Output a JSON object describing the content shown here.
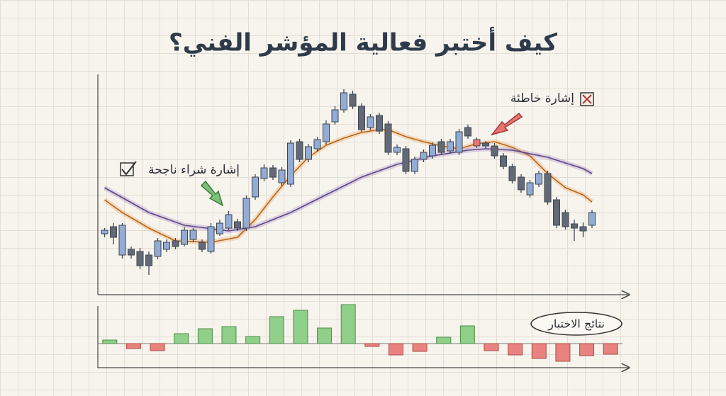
{
  "chart_data": [
    {
      "type": "candlestick",
      "title": "كيف أختبر فعالية المؤشر الفني؟",
      "open": [
        85,
        95,
        55,
        63,
        60,
        55,
        53,
        63,
        75,
        70,
        77,
        73,
        60,
        85,
        93,
        102,
        93,
        137,
        163,
        178,
        157,
        155,
        215,
        190,
        205,
        215,
        243,
        260,
        282,
        265,
        235,
        252,
        240,
        200,
        205,
        173,
        190,
        195,
        215,
        202,
        200,
        235,
        218,
        213,
        209,
        195,
        180,
        165,
        140,
        155,
        170,
        133,
        115,
        99,
        95,
        97
      ],
      "close": [
        90,
        80,
        97,
        55,
        40,
        40,
        75,
        73,
        67,
        90,
        90,
        63,
        95,
        100,
        112,
        93,
        135,
        165,
        178,
        165,
        175,
        213,
        190,
        208,
        218,
        240,
        260,
        284,
        265,
        232,
        250,
        230,
        200,
        207,
        173,
        190,
        200,
        210,
        200,
        215,
        229,
        223,
        209,
        209,
        195,
        180,
        160,
        147,
        157,
        170,
        130,
        97,
        95,
        93,
        89,
        115
      ],
      "high": [
        93,
        100,
        100,
        67,
        65,
        60,
        79,
        77,
        79,
        95,
        93,
        77,
        100,
        105,
        117,
        106,
        139,
        169,
        183,
        182,
        179,
        217,
        219,
        212,
        222,
        245,
        265,
        289,
        287,
        269,
        254,
        256,
        244,
        211,
        209,
        194,
        204,
        214,
        219,
        219,
        233,
        239,
        221,
        216,
        213,
        199,
        184,
        169,
        161,
        174,
        174,
        137,
        119,
        105,
        101,
        119
      ],
      "low": [
        80,
        70,
        50,
        50,
        35,
        27,
        49,
        59,
        63,
        67,
        73,
        59,
        57,
        82,
        90,
        89,
        89,
        133,
        159,
        161,
        153,
        151,
        186,
        186,
        201,
        211,
        239,
        256,
        261,
        228,
        231,
        226,
        196,
        196,
        169,
        169,
        186,
        191,
        196,
        198,
        196,
        219,
        206,
        205,
        191,
        176,
        156,
        143,
        136,
        151,
        126,
        93,
        91,
        75,
        80,
        93
      ],
      "colors": [
        "#93acd4",
        "#636a75",
        "#93acd4",
        "#636a75",
        "#636a75",
        "#636a75",
        "#93acd4",
        "#93acd4",
        "#636a75",
        "#93acd4",
        "#93acd4",
        "#636a75",
        "#93acd4",
        "#93acd4",
        "#93acd4",
        "#636a75",
        "#93acd4",
        "#93acd4",
        "#93acd4",
        "#636a75",
        "#93acd4",
        "#93acd4",
        "#636a75",
        "#93acd4",
        "#93acd4",
        "#93acd4",
        "#93acd4",
        "#93acd4",
        "#636a75",
        "#636a75",
        "#93acd4",
        "#636a75",
        "#636a75",
        "#93acd4",
        "#636a75",
        "#93acd4",
        "#93acd4",
        "#93acd4",
        "#636a75",
        "#93acd4",
        "#93acd4",
        "#636a75",
        "#e8756f",
        "#636a75",
        "#636a75",
        "#636a75",
        "#636a75",
        "#636a75",
        "#93acd4",
        "#93acd4",
        "#636a75",
        "#636a75",
        "#636a75",
        "#636a75",
        "#636a75",
        "#93acd4"
      ],
      "series": [
        {
          "color": "#f0a050",
          "x": [
            0,
            2,
            5,
            8,
            12,
            15,
            17,
            19,
            21,
            23,
            25,
            27,
            29,
            31,
            32,
            34,
            36,
            38,
            40,
            42,
            44,
            46,
            48,
            50,
            52,
            54,
            55
          ],
          "values": [
            133,
            115,
            93,
            75,
            73,
            80,
            105,
            137,
            167,
            193,
            210,
            220,
            228,
            232,
            232,
            222,
            215,
            209,
            205,
            212,
            215,
            207,
            195,
            170,
            150,
            140,
            130
          ]
        },
        {
          "color": "#9b7fc0",
          "x": [
            0,
            5,
            9,
            14,
            17,
            21,
            25,
            29,
            33,
            37,
            41,
            43,
            46,
            50,
            54,
            55
          ],
          "values": [
            150,
            115,
            97,
            89,
            95,
            115,
            140,
            165,
            183,
            195,
            203,
            205,
            203,
            193,
            177,
            170
          ]
        }
      ],
      "ylim": [
        0,
        300
      ],
      "xlim": [
        -0.6,
        57
      ],
      "annotations": [
        "إشارة شراء ناجحة",
        "إشارة خاطئة"
      ]
    },
    {
      "type": "bar",
      "label": "نتائج الاختبار",
      "values": [
        5,
        -7,
        -10,
        14,
        21,
        24,
        10,
        38,
        47,
        22,
        55,
        -4,
        -16,
        -11,
        9,
        25,
        -10,
        -16,
        -21,
        -25,
        -17,
        -15
      ],
      "positive_color": "#8fcf8a",
      "negative_color": "#e8837f",
      "ylim": [
        -30,
        55
      ]
    }
  ]
}
